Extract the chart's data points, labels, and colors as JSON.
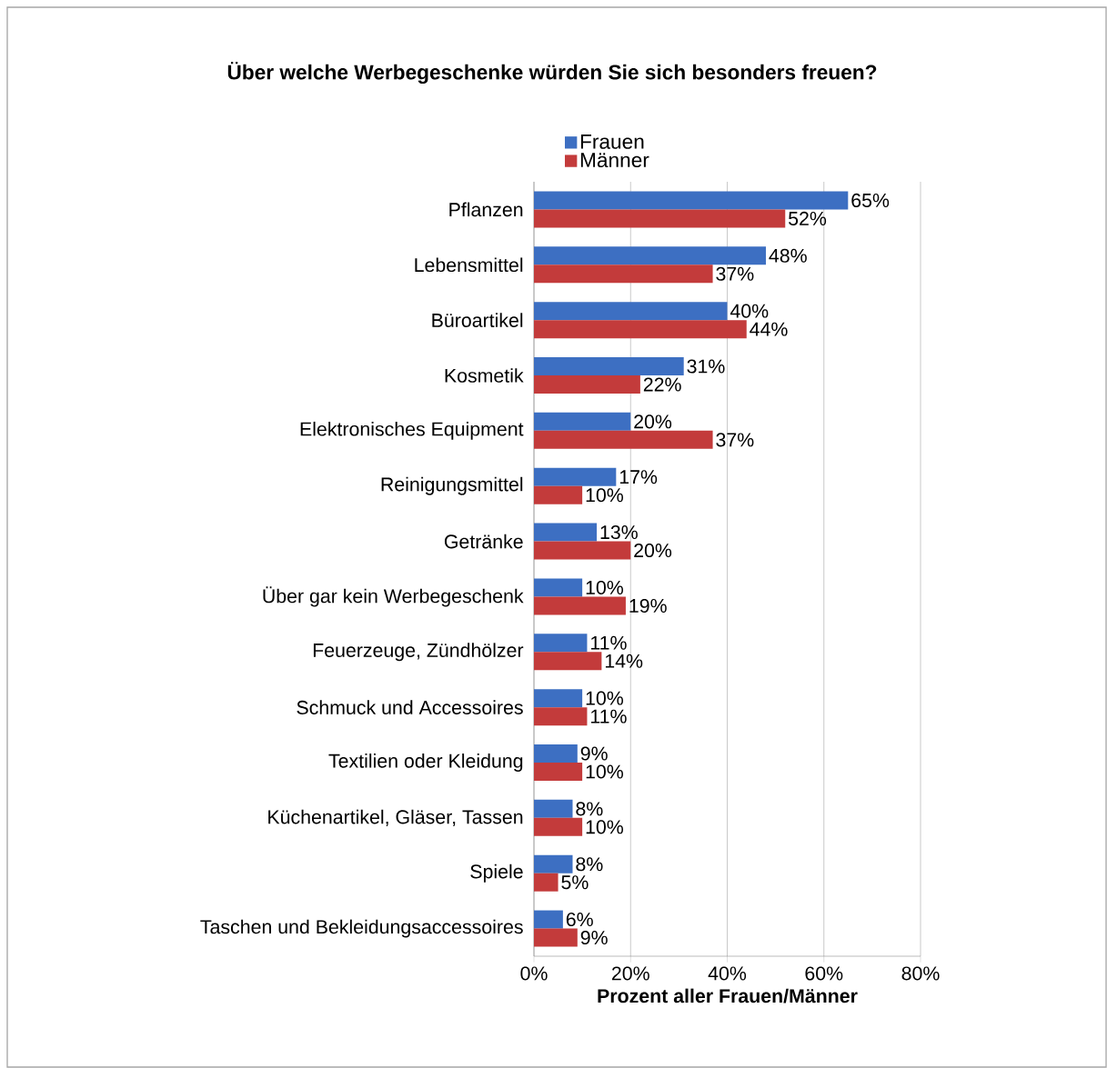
{
  "chart_data": {
    "type": "bar",
    "orientation": "horizontal",
    "title": "Über welche Werbegeschenke würden Sie sich besonders freuen?",
    "xlabel": "Prozent aller Frauen/Männer",
    "categories": [
      "Pflanzen",
      "Lebensmittel",
      "Büroartikel",
      "Kosmetik",
      "Elektronisches Equipment",
      "Reinigungsmittel",
      "Getränke",
      "Über gar kein Werbegeschenk",
      "Feuerzeuge, Zündhölzer",
      "Schmuck und Accessoires",
      "Textilien oder Kleidung",
      "Küchenartikel, Gläser, Tassen",
      "Spiele",
      "Taschen und Bekleidungsaccessoires"
    ],
    "series": [
      {
        "name": "Frauen",
        "color": "#3d6fc2",
        "values": [
          65,
          48,
          40,
          31,
          20,
          17,
          13,
          10,
          11,
          10,
          9,
          8,
          8,
          6
        ],
        "value_labels": [
          "65%",
          "48%",
          "40%",
          "31%",
          "20%",
          "17%",
          "13%",
          "10%",
          "11%",
          "10%",
          "9%",
          "8%",
          "8%",
          "6%"
        ]
      },
      {
        "name": "Männer",
        "color": "#c33b3b",
        "values": [
          52,
          37,
          44,
          22,
          37,
          10,
          20,
          19,
          14,
          11,
          10,
          10,
          5,
          9
        ],
        "value_labels": [
          "52%",
          "37%",
          "44%",
          "22%",
          "37%",
          "10%",
          "20%",
          "19%",
          "14%",
          "11%",
          "10%",
          "10%",
          "5%",
          "9%"
        ]
      }
    ],
    "xlim": [
      0,
      80
    ],
    "xticks": [
      {
        "value": 0,
        "label": "0%"
      },
      {
        "value": 20,
        "label": "20%"
      },
      {
        "value": 40,
        "label": "40%"
      },
      {
        "value": 60,
        "label": "60%"
      },
      {
        "value": 80,
        "label": "80%"
      }
    ],
    "grid": "x",
    "legend": "top"
  }
}
